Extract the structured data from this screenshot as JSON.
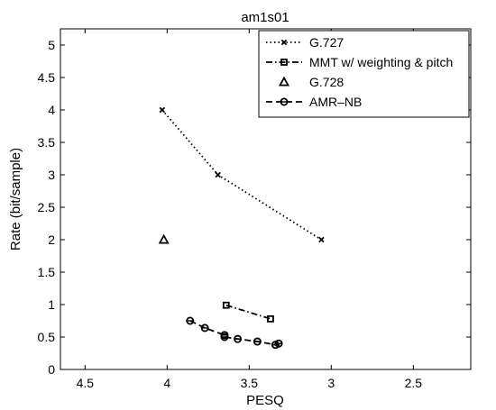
{
  "chart_data": {
    "type": "line",
    "title": "am1s01",
    "xlabel": "PESQ",
    "ylabel": "Rate (bit/sample)",
    "xlim": [
      4.65,
      2.15
    ],
    "ylim": [
      0,
      5.25
    ],
    "x_reversed": true,
    "xticks": [
      4.5,
      4,
      3.5,
      3,
      2.5
    ],
    "xtick_labels": [
      "4.5",
      "4",
      "3.5",
      "3",
      "2.5"
    ],
    "yticks": [
      0,
      0.5,
      1,
      1.5,
      2,
      2.5,
      3,
      3.5,
      4,
      4.5,
      5
    ],
    "ytick_labels": [
      "0",
      "0.5",
      "1",
      "1.5",
      "2",
      "2.5",
      "3",
      "3.5",
      "4",
      "4.5",
      "5"
    ],
    "grid": false,
    "legend_position": "top-right",
    "series": [
      {
        "name": "G.727",
        "line_style": "dotted",
        "marker": "x",
        "x": [
          4.03,
          3.69,
          3.06
        ],
        "y": [
          4.0,
          3.0,
          2.0
        ]
      },
      {
        "name": "MMT w/ weighting & pitch",
        "line_style": "dashdot",
        "marker": "square",
        "x": [
          3.64,
          3.37
        ],
        "y": [
          0.99,
          0.78
        ]
      },
      {
        "name": "G.728",
        "line_style": "none",
        "marker": "triangle",
        "x": [
          4.02
        ],
        "y": [
          2.0
        ]
      },
      {
        "name": "AMR–NB",
        "line_style": "dashed",
        "marker": "circle",
        "x": [
          3.86,
          3.77,
          3.65,
          3.65,
          3.57,
          3.45,
          3.34,
          3.32
        ],
        "y": [
          0.75,
          0.64,
          0.53,
          0.5,
          0.47,
          0.43,
          0.38,
          0.4
        ]
      }
    ]
  }
}
